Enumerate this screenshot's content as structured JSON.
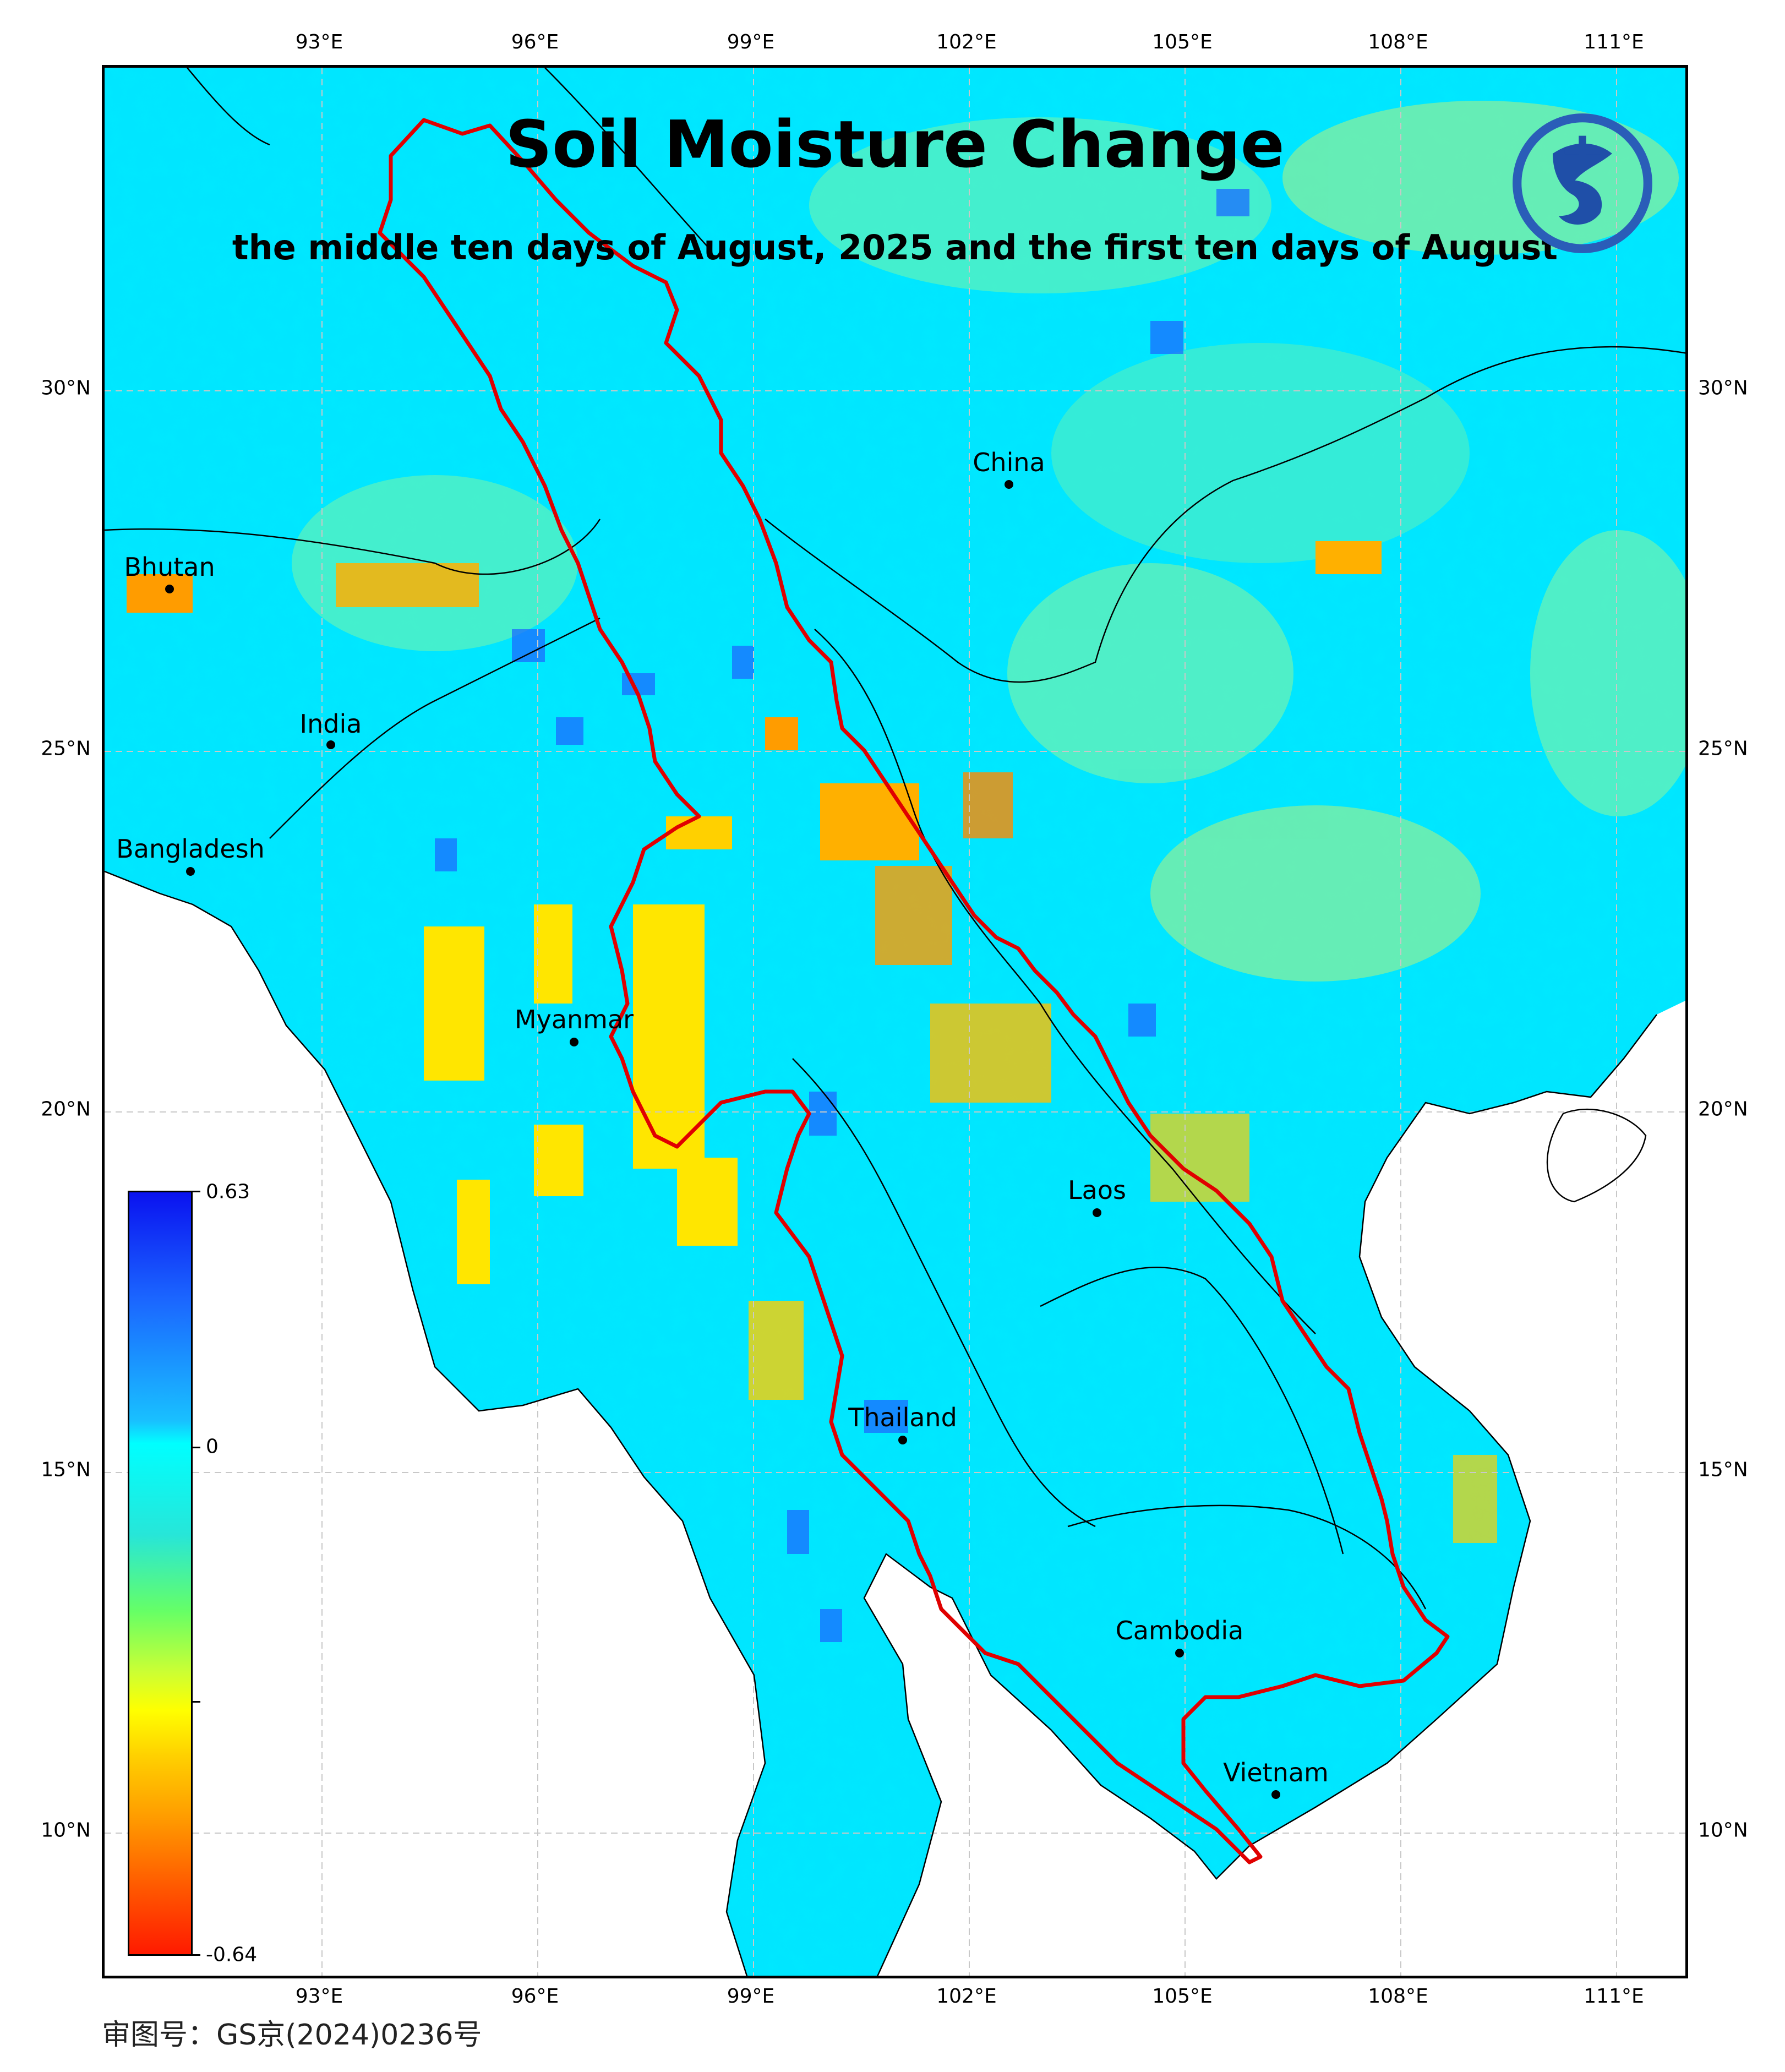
{
  "map": {
    "title": "Soil Moisture Change",
    "subtitle": "the middle ten days of August, 2025 and the first ten days of August",
    "lon_labels": [
      "93°E",
      "96°E",
      "99°E",
      "102°E",
      "105°E",
      "108°E",
      "111°E"
    ],
    "lat_labels": [
      "30°N",
      "25°N",
      "20°N",
      "15°N",
      "10°N"
    ],
    "countries": [
      {
        "name": "China"
      },
      {
        "name": "Bhutan"
      },
      {
        "name": "India"
      },
      {
        "name": "Bangladesh"
      },
      {
        "name": "Myanmar"
      },
      {
        "name": "Laos"
      },
      {
        "name": "Thailand"
      },
      {
        "name": "Cambodia"
      },
      {
        "name": "Vietnam"
      }
    ],
    "basin_outline_color": "#e00000",
    "background_color": "#00e6ff"
  },
  "colorbar": {
    "max": "0.63",
    "mid": "0",
    "min": "-0.64",
    "colors": [
      "#0a12f0",
      "#19c0ff",
      "#00ffff",
      "#66ff66",
      "#ffff00",
      "#ff9c00",
      "#ff1a00"
    ]
  },
  "footer": {
    "review_number": "审图号：GS京(2024)0236号"
  },
  "logo": {
    "icon": "dragon-emblem-icon"
  }
}
